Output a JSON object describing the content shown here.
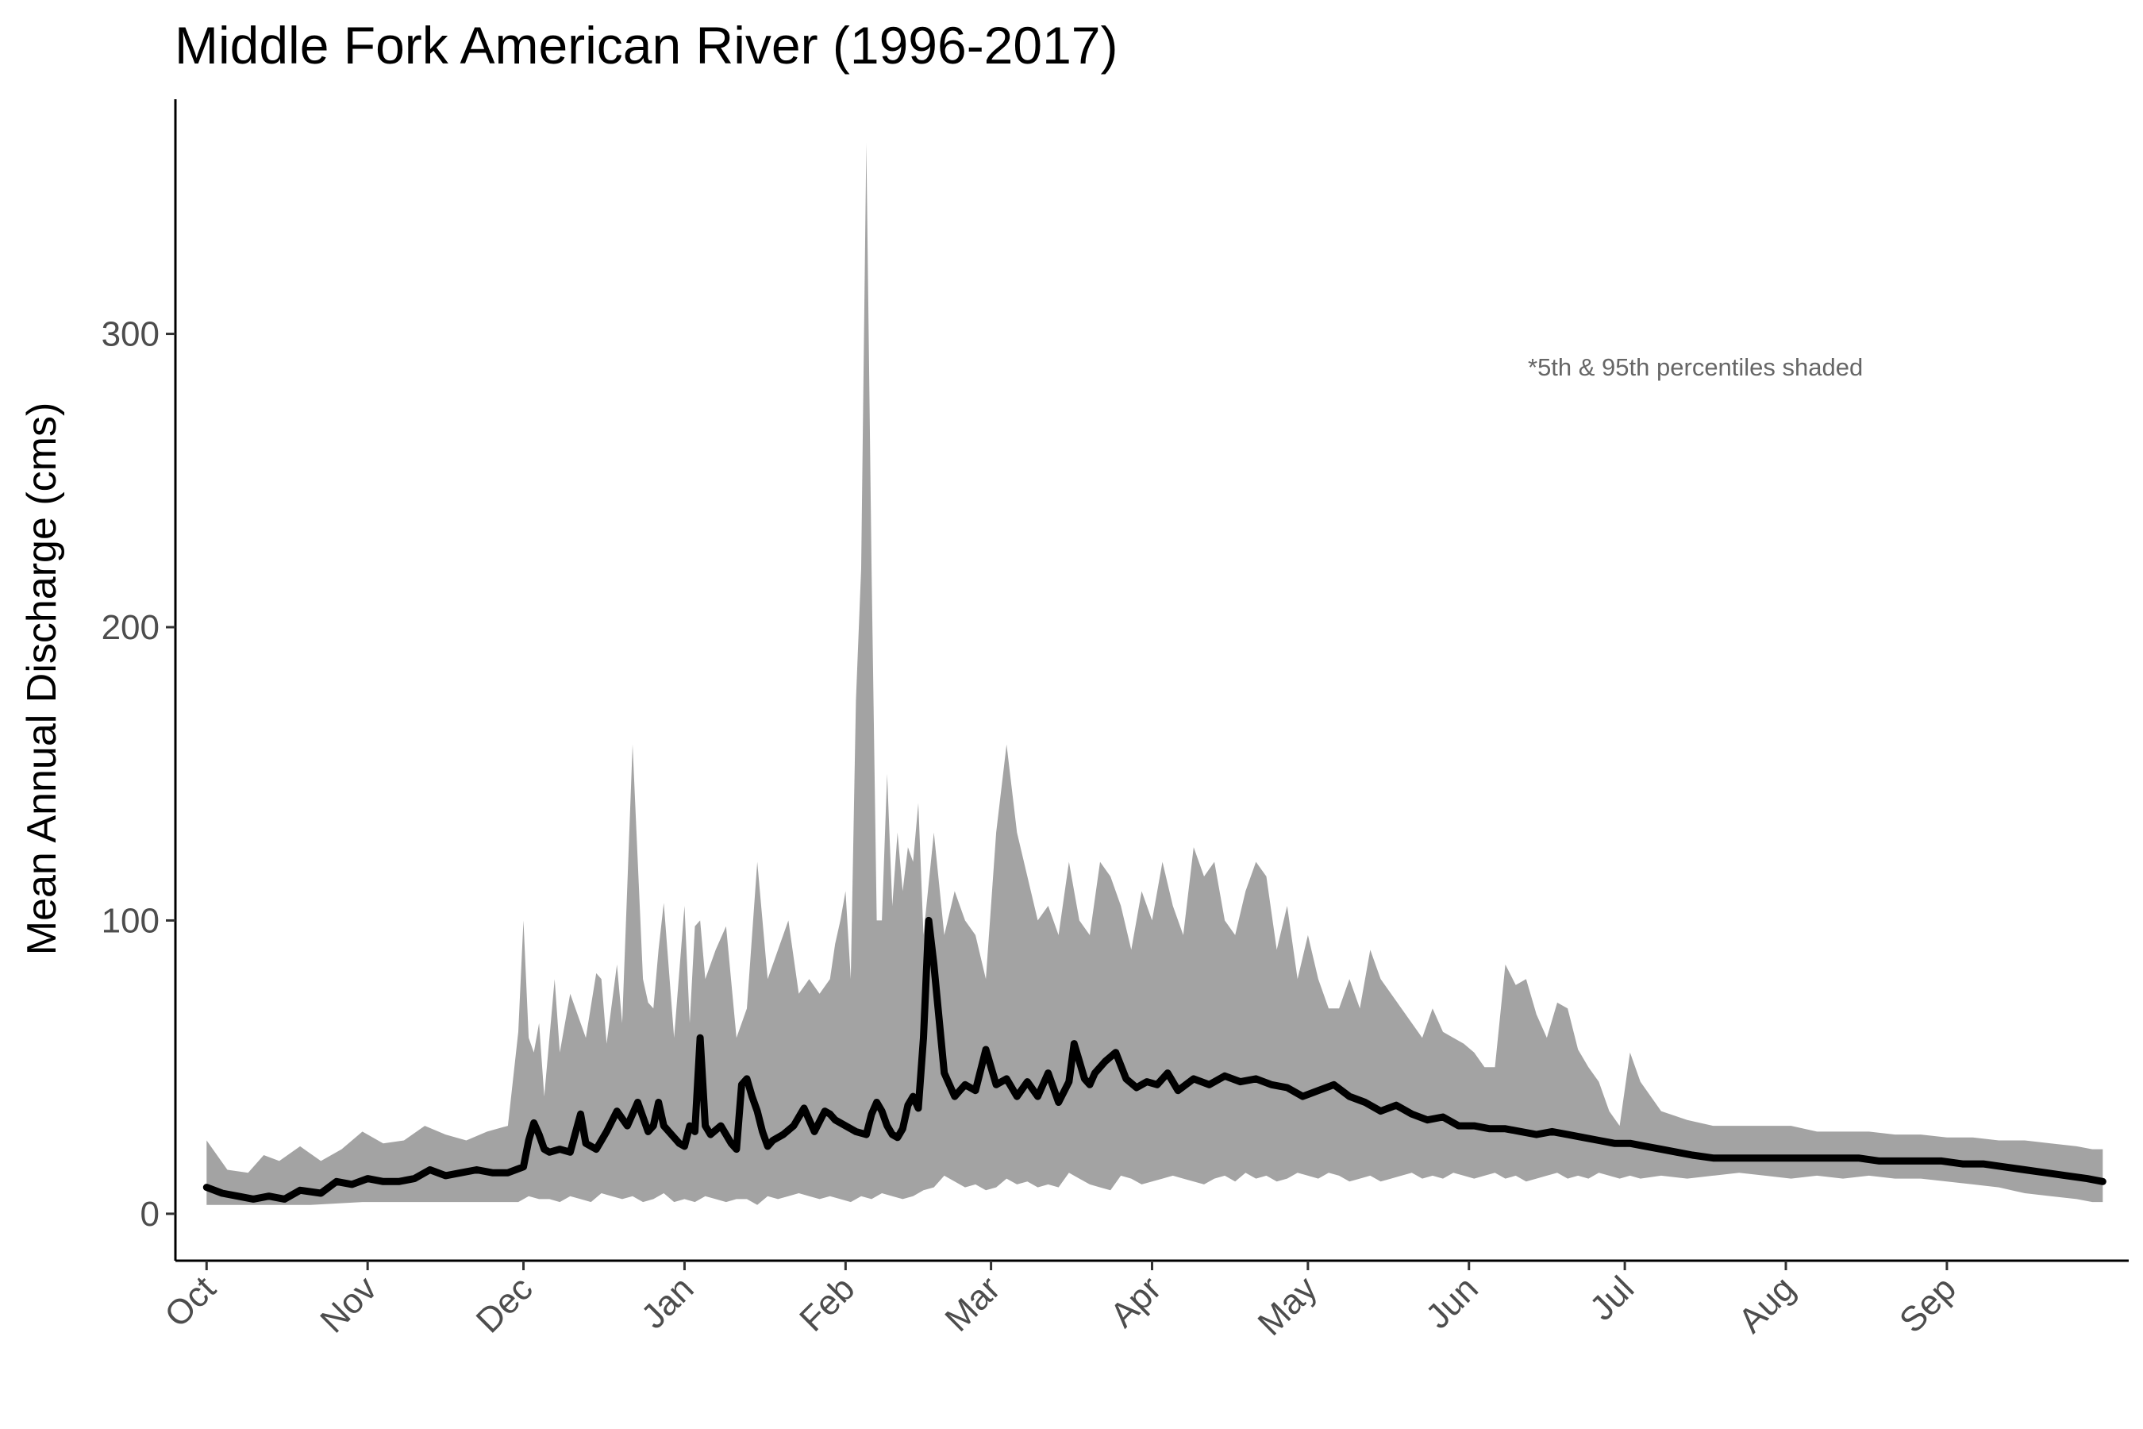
{
  "chart_data": {
    "type": "area",
    "title": "Middle Fork American River (1996-2017)",
    "xlabel": "",
    "ylabel": "Mean Annual Discharge (cms)",
    "annotation": "*5th & 95th percentiles shaded",
    "ylim": [
      -16,
      380
    ],
    "xlim": [
      -6,
      370
    ],
    "y_ticks": [
      0,
      100,
      200,
      300
    ],
    "x_ticks": [
      {
        "label": "Oct",
        "day": 0
      },
      {
        "label": "Nov",
        "day": 31
      },
      {
        "label": "Dec",
        "day": 61
      },
      {
        "label": "Jan",
        "day": 92
      },
      {
        "label": "Feb",
        "day": 123
      },
      {
        "label": "Mar",
        "day": 151
      },
      {
        "label": "Apr",
        "day": 182
      },
      {
        "label": "May",
        "day": 212
      },
      {
        "label": "Jun",
        "day": 243
      },
      {
        "label": "Jul",
        "day": 273
      },
      {
        "label": "Aug",
        "day": 304
      },
      {
        "label": "Sep",
        "day": 335
      }
    ],
    "grid": false,
    "legend": "none",
    "series": [
      {
        "role": "mean",
        "color": "#000000",
        "x": [
          0,
          3,
          6,
          9,
          12,
          15,
          18,
          22,
          25,
          28,
          31,
          34,
          37,
          40,
          43,
          46,
          49,
          52,
          55,
          58,
          61,
          62,
          63,
          64,
          65,
          66,
          68,
          70,
          72,
          73,
          75,
          77,
          79,
          81,
          83,
          85,
          86,
          87,
          88,
          90,
          91,
          92,
          93,
          94,
          95,
          96,
          97,
          99,
          101,
          102,
          103,
          104,
          105,
          106,
          107,
          108,
          109,
          111,
          113,
          115,
          117,
          119,
          120,
          121,
          123,
          125,
          127,
          128,
          129,
          130,
          131,
          132,
          133,
          134,
          135,
          136,
          137,
          138,
          139,
          140,
          142,
          144,
          146,
          148,
          150,
          152,
          154,
          156,
          158,
          160,
          162,
          164,
          166,
          167,
          168,
          169,
          170,
          171,
          173,
          175,
          177,
          179,
          181,
          183,
          185,
          187,
          190,
          193,
          196,
          199,
          202,
          205,
          208,
          211,
          214,
          217,
          220,
          223,
          226,
          229,
          232,
          235,
          238,
          241,
          244,
          247,
          250,
          253,
          256,
          259,
          262,
          265,
          268,
          271,
          274,
          277,
          280,
          283,
          286,
          290,
          294,
          298,
          302,
          306,
          310,
          314,
          318,
          322,
          326,
          330,
          334,
          338,
          342,
          346,
          350,
          354,
          358,
          362,
          365
        ],
        "y": [
          9,
          7,
          6,
          5,
          6,
          5,
          8,
          7,
          11,
          10,
          12,
          11,
          11,
          12,
          15,
          13,
          14,
          15,
          14,
          14,
          16,
          25,
          31,
          27,
          22,
          21,
          22,
          21,
          34,
          24,
          22,
          28,
          35,
          30,
          38,
          28,
          30,
          38,
          30,
          26,
          24,
          23,
          30,
          28,
          60,
          30,
          27,
          30,
          24,
          22,
          44,
          46,
          40,
          35,
          28,
          23,
          25,
          27,
          30,
          36,
          28,
          35,
          34,
          32,
          30,
          28,
          27,
          34,
          38,
          35,
          30,
          27,
          26,
          29,
          37,
          40,
          36,
          60,
          100,
          85,
          48,
          40,
          44,
          42,
          56,
          44,
          46,
          40,
          45,
          40,
          48,
          38,
          45,
          58,
          52,
          46,
          44,
          48,
          52,
          55,
          46,
          43,
          45,
          44,
          48,
          42,
          46,
          44,
          47,
          45,
          46,
          44,
          43,
          40,
          42,
          44,
          40,
          38,
          35,
          37,
          34,
          32,
          33,
          30,
          30,
          29,
          29,
          28,
          27,
          28,
          27,
          26,
          25,
          24,
          24,
          23,
          22,
          21,
          20,
          19,
          19,
          19,
          19,
          19,
          19,
          19,
          19,
          18,
          18,
          18,
          18,
          17,
          17,
          16,
          15,
          14,
          13,
          12,
          11
        ]
      },
      {
        "role": "95th percentile",
        "color": "#a3a3a3",
        "x": [
          0,
          4,
          8,
          11,
          14,
          18,
          22,
          26,
          30,
          34,
          38,
          42,
          46,
          50,
          54,
          58,
          60,
          61,
          62,
          63,
          64,
          65,
          67,
          68,
          70,
          73,
          75,
          76,
          77,
          79,
          80,
          82,
          84,
          85,
          86,
          87,
          88,
          90,
          92,
          93,
          94,
          95,
          96,
          98,
          100,
          102,
          104,
          106,
          108,
          110,
          112,
          114,
          116,
          118,
          120,
          121,
          122,
          123,
          124,
          125,
          126,
          127,
          128,
          129,
          130,
          131,
          132,
          133,
          134,
          135,
          136,
          137,
          138,
          140,
          142,
          144,
          146,
          148,
          150,
          152,
          154,
          156,
          158,
          160,
          162,
          164,
          166,
          167,
          168,
          170,
          172,
          174,
          176,
          178,
          180,
          182,
          184,
          186,
          188,
          190,
          192,
          194,
          196,
          198,
          200,
          202,
          204,
          206,
          208,
          210,
          212,
          214,
          216,
          218,
          220,
          222,
          224,
          226,
          228,
          230,
          232,
          234,
          236,
          238,
          240,
          242,
          244,
          246,
          248,
          250,
          252,
          254,
          256,
          258,
          260,
          262,
          264,
          266,
          268,
          270,
          272,
          274,
          276,
          280,
          285,
          290,
          295,
          300,
          305,
          310,
          315,
          320,
          325,
          330,
          335,
          340,
          345,
          350,
          355,
          360,
          363,
          365
        ],
        "y": [
          25,
          15,
          14,
          20,
          18,
          23,
          18,
          22,
          28,
          24,
          25,
          30,
          27,
          25,
          28,
          30,
          62,
          100,
          60,
          55,
          65,
          40,
          80,
          55,
          75,
          60,
          82,
          80,
          58,
          85,
          65,
          160,
          80,
          72,
          70,
          90,
          106,
          60,
          105,
          65,
          98,
          100,
          80,
          90,
          98,
          60,
          70,
          120,
          80,
          90,
          100,
          75,
          80,
          75,
          80,
          92,
          100,
          110,
          80,
          175,
          220,
          365,
          220,
          100,
          100,
          150,
          105,
          130,
          110,
          125,
          120,
          140,
          95,
          130,
          95,
          110,
          100,
          95,
          80,
          130,
          160,
          130,
          115,
          100,
          105,
          95,
          120,
          110,
          100,
          95,
          120,
          115,
          105,
          90,
          110,
          100,
          120,
          105,
          95,
          125,
          115,
          120,
          100,
          95,
          110,
          120,
          115,
          90,
          105,
          80,
          95,
          80,
          70,
          70,
          80,
          70,
          90,
          80,
          75,
          70,
          65,
          60,
          70,
          62,
          60,
          58,
          55,
          50,
          50,
          85,
          78,
          80,
          68,
          60,
          72,
          70,
          56,
          50,
          45,
          35,
          30,
          55,
          45,
          35,
          32,
          30,
          30,
          30,
          30,
          28,
          28,
          28,
          27,
          27,
          26,
          26,
          25,
          25,
          24,
          23,
          22,
          22
        ]
      },
      {
        "role": "5th percentile",
        "color": "#a3a3a3",
        "x": [
          0,
          10,
          20,
          30,
          40,
          50,
          60,
          62,
          64,
          66,
          68,
          70,
          72,
          74,
          76,
          78,
          80,
          82,
          84,
          86,
          88,
          90,
          92,
          94,
          96,
          98,
          100,
          102,
          104,
          106,
          108,
          110,
          112,
          114,
          116,
          118,
          120,
          122,
          124,
          126,
          128,
          130,
          132,
          134,
          136,
          138,
          140,
          142,
          144,
          146,
          148,
          150,
          152,
          154,
          156,
          158,
          160,
          162,
          164,
          166,
          168,
          170,
          172,
          174,
          176,
          178,
          180,
          182,
          184,
          186,
          188,
          190,
          192,
          194,
          196,
          198,
          200,
          202,
          204,
          206,
          208,
          210,
          212,
          214,
          216,
          218,
          220,
          222,
          224,
          226,
          228,
          230,
          232,
          234,
          236,
          238,
          240,
          242,
          244,
          246,
          248,
          250,
          252,
          254,
          256,
          258,
          260,
          262,
          264,
          266,
          268,
          270,
          272,
          274,
          276,
          280,
          285,
          290,
          295,
          300,
          305,
          310,
          315,
          320,
          325,
          330,
          335,
          340,
          345,
          350,
          355,
          360,
          363,
          365
        ],
        "y": [
          3,
          3,
          3,
          4,
          4,
          4,
          4,
          6,
          5,
          5,
          4,
          6,
          5,
          4,
          7,
          6,
          5,
          6,
          4,
          5,
          7,
          4,
          5,
          4,
          6,
          5,
          4,
          5,
          5,
          3,
          6,
          5,
          6,
          7,
          6,
          5,
          6,
          5,
          4,
          6,
          5,
          7,
          6,
          5,
          6,
          8,
          9,
          13,
          11,
          9,
          10,
          8,
          9,
          12,
          10,
          11,
          9,
          10,
          9,
          14,
          12,
          10,
          9,
          8,
          13,
          12,
          10,
          11,
          12,
          13,
          12,
          11,
          10,
          12,
          13,
          11,
          14,
          12,
          13,
          11,
          12,
          14,
          13,
          12,
          14,
          13,
          11,
          12,
          13,
          11,
          12,
          13,
          14,
          12,
          13,
          12,
          14,
          13,
          12,
          13,
          14,
          12,
          13,
          11,
          12,
          13,
          14,
          12,
          13,
          12,
          14,
          13,
          12,
          13,
          12,
          13,
          12,
          13,
          14,
          13,
          12,
          13,
          12,
          13,
          12,
          12,
          11,
          10,
          9,
          7,
          6,
          5,
          4,
          4
        ]
      }
    ]
  }
}
